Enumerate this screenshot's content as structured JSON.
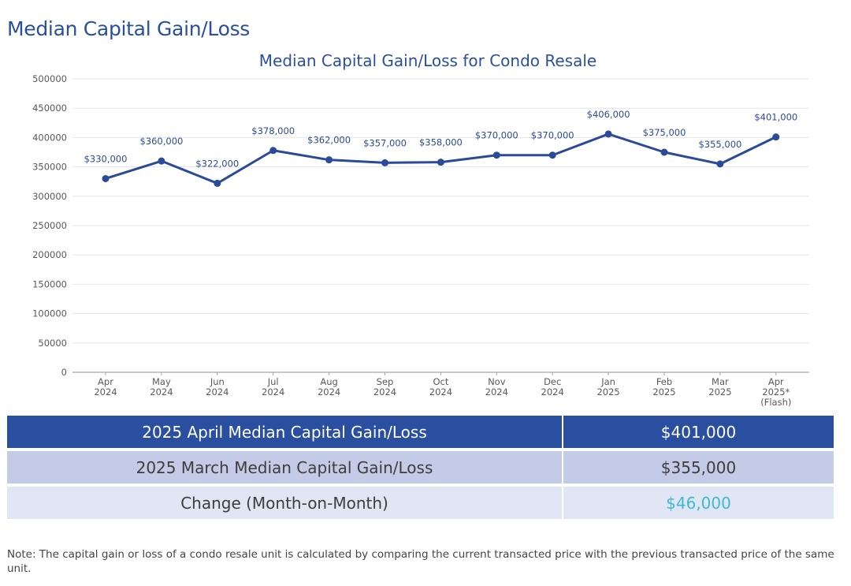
{
  "page_heading": "Median Capital Gain/Loss",
  "chart_data": {
    "type": "line",
    "title": "Median Capital Gain/Loss for Condo Resale",
    "xlabel": "",
    "ylabel": "",
    "ylim": [
      0,
      500000
    ],
    "yticks": [
      "0",
      "50000",
      "100000",
      "150000",
      "200000",
      "250000",
      "300000",
      "350000",
      "400000",
      "450000",
      "500000"
    ],
    "categories": [
      [
        "Apr",
        "2024"
      ],
      [
        "May",
        "2024"
      ],
      [
        "Jun",
        "2024"
      ],
      [
        "Jul",
        "2024"
      ],
      [
        "Aug",
        "2024"
      ],
      [
        "Sep",
        "2024"
      ],
      [
        "Oct",
        "2024"
      ],
      [
        "Nov",
        "2024"
      ],
      [
        "Dec",
        "2024"
      ],
      [
        "Jan",
        "2025"
      ],
      [
        "Feb",
        "2025"
      ],
      [
        "Mar",
        "2025"
      ],
      [
        "Apr",
        "2025*",
        "(Flash)"
      ]
    ],
    "values": [
      330000,
      360000,
      322000,
      378000,
      362000,
      357000,
      358000,
      370000,
      370000,
      406000,
      375000,
      355000,
      401000
    ],
    "data_labels": [
      "$330,000",
      "$360,000",
      "$322,000",
      "$378,000",
      "$362,000",
      "$357,000",
      "$358,000",
      "$370,000",
      "$370,000",
      "$406,000",
      "$375,000",
      "$355,000",
      "$401,000"
    ],
    "grid": true,
    "colors": {
      "line": "#2a4a9a",
      "label": "#2a4a9a",
      "title": "#2a4f9e",
      "grid": "#e6e6e6",
      "axis_text": "#595959"
    }
  },
  "summary_table": [
    {
      "label": "2025 April Median Capital Gain/Loss",
      "value": "$401,000"
    },
    {
      "label": "2025 March Median Capital Gain/Loss",
      "value": "$355,000"
    },
    {
      "label": "Change (Month-on-Month)",
      "value": "$46,000"
    }
  ],
  "note": "Note: The capital gain or loss of a condo resale unit is calculated by comparing the current transacted price with the previous transacted price of the same unit."
}
